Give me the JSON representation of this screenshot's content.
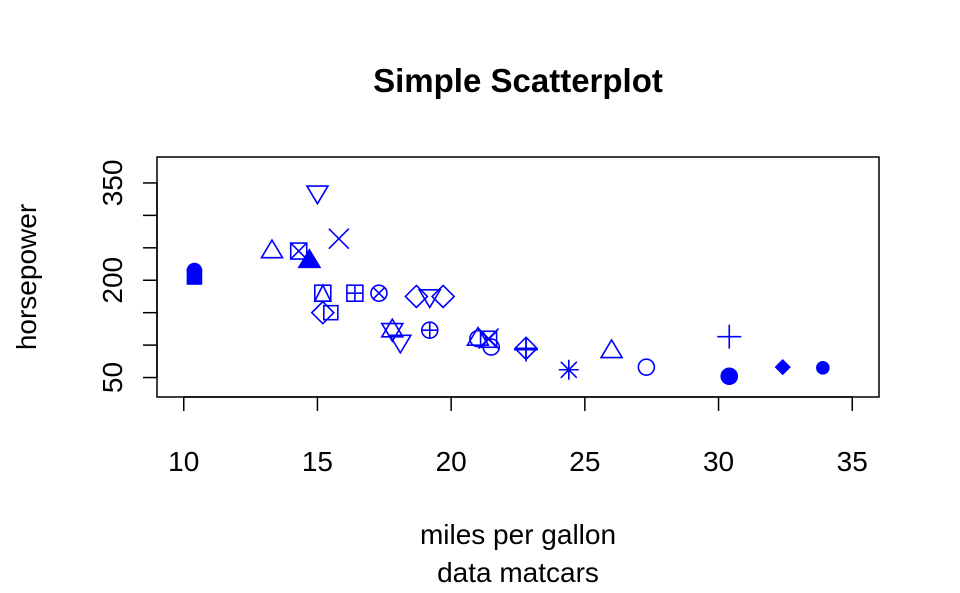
{
  "chart_data": {
    "type": "scatter",
    "title": "Simple Scatterplot",
    "xlabel": "miles per gallon",
    "sublabel": "data matcars",
    "ylabel": "horsepower",
    "xlim": [
      9,
      36
    ],
    "ylim": [
      20,
      390
    ],
    "xticks": [
      10,
      15,
      20,
      25,
      30,
      35
    ],
    "yticks": [
      50,
      100,
      150,
      200,
      250,
      300,
      350
    ],
    "ytick_labels": [
      "50",
      "",
      "",
      "200",
      "",
      "",
      "350"
    ],
    "color": "#0000ff",
    "grid": false,
    "legend": "none",
    "points": [
      {
        "x": 21.0,
        "y": 110,
        "shape": "circle-open"
      },
      {
        "x": 21.0,
        "y": 110,
        "shape": "triangle-open"
      },
      {
        "x": 22.8,
        "y": 93,
        "shape": "plus"
      },
      {
        "x": 21.4,
        "y": 110,
        "shape": "cross"
      },
      {
        "x": 18.7,
        "y": 175,
        "shape": "diamond-open"
      },
      {
        "x": 18.1,
        "y": 105,
        "shape": "triangle-down-open"
      },
      {
        "x": 14.3,
        "y": 245,
        "shape": "square-cross"
      },
      {
        "x": 24.4,
        "y": 62,
        "shape": "asterisk"
      },
      {
        "x": 22.8,
        "y": 95,
        "shape": "diamond-plus"
      },
      {
        "x": 19.2,
        "y": 123,
        "shape": "circle-plus"
      },
      {
        "x": 17.8,
        "y": 123,
        "shape": "star-of-david"
      },
      {
        "x": 16.4,
        "y": 180,
        "shape": "square-plus"
      },
      {
        "x": 17.3,
        "y": 180,
        "shape": "circle-cross"
      },
      {
        "x": 15.2,
        "y": 180,
        "shape": "triangle-square"
      },
      {
        "x": 10.4,
        "y": 205,
        "shape": "square-filled"
      },
      {
        "x": 10.4,
        "y": 215,
        "shape": "circle-filled"
      },
      {
        "x": 14.7,
        "y": 230,
        "shape": "triangle-filled"
      },
      {
        "x": 32.4,
        "y": 66,
        "shape": "diamond-filled"
      },
      {
        "x": 30.4,
        "y": 52,
        "shape": "circle-filled-large"
      },
      {
        "x": 33.9,
        "y": 65,
        "shape": "circle-filled-small"
      },
      {
        "x": 21.5,
        "y": 97,
        "shape": "circle-open"
      },
      {
        "x": 15.5,
        "y": 150,
        "shape": "square-open"
      },
      {
        "x": 15.2,
        "y": 150,
        "shape": "diamond-open"
      },
      {
        "x": 13.3,
        "y": 245,
        "shape": "triangle-open"
      },
      {
        "x": 19.2,
        "y": 175,
        "shape": "triangle-down-open"
      },
      {
        "x": 27.3,
        "y": 66,
        "shape": "circle-open"
      },
      {
        "x": 26.0,
        "y": 91,
        "shape": "triangle-open"
      },
      {
        "x": 30.4,
        "y": 113,
        "shape": "plus"
      },
      {
        "x": 15.8,
        "y": 264,
        "shape": "cross"
      },
      {
        "x": 19.7,
        "y": 175,
        "shape": "diamond-open"
      },
      {
        "x": 15.0,
        "y": 335,
        "shape": "triangle-down-open"
      },
      {
        "x": 21.4,
        "y": 109,
        "shape": "square-cross"
      }
    ]
  }
}
